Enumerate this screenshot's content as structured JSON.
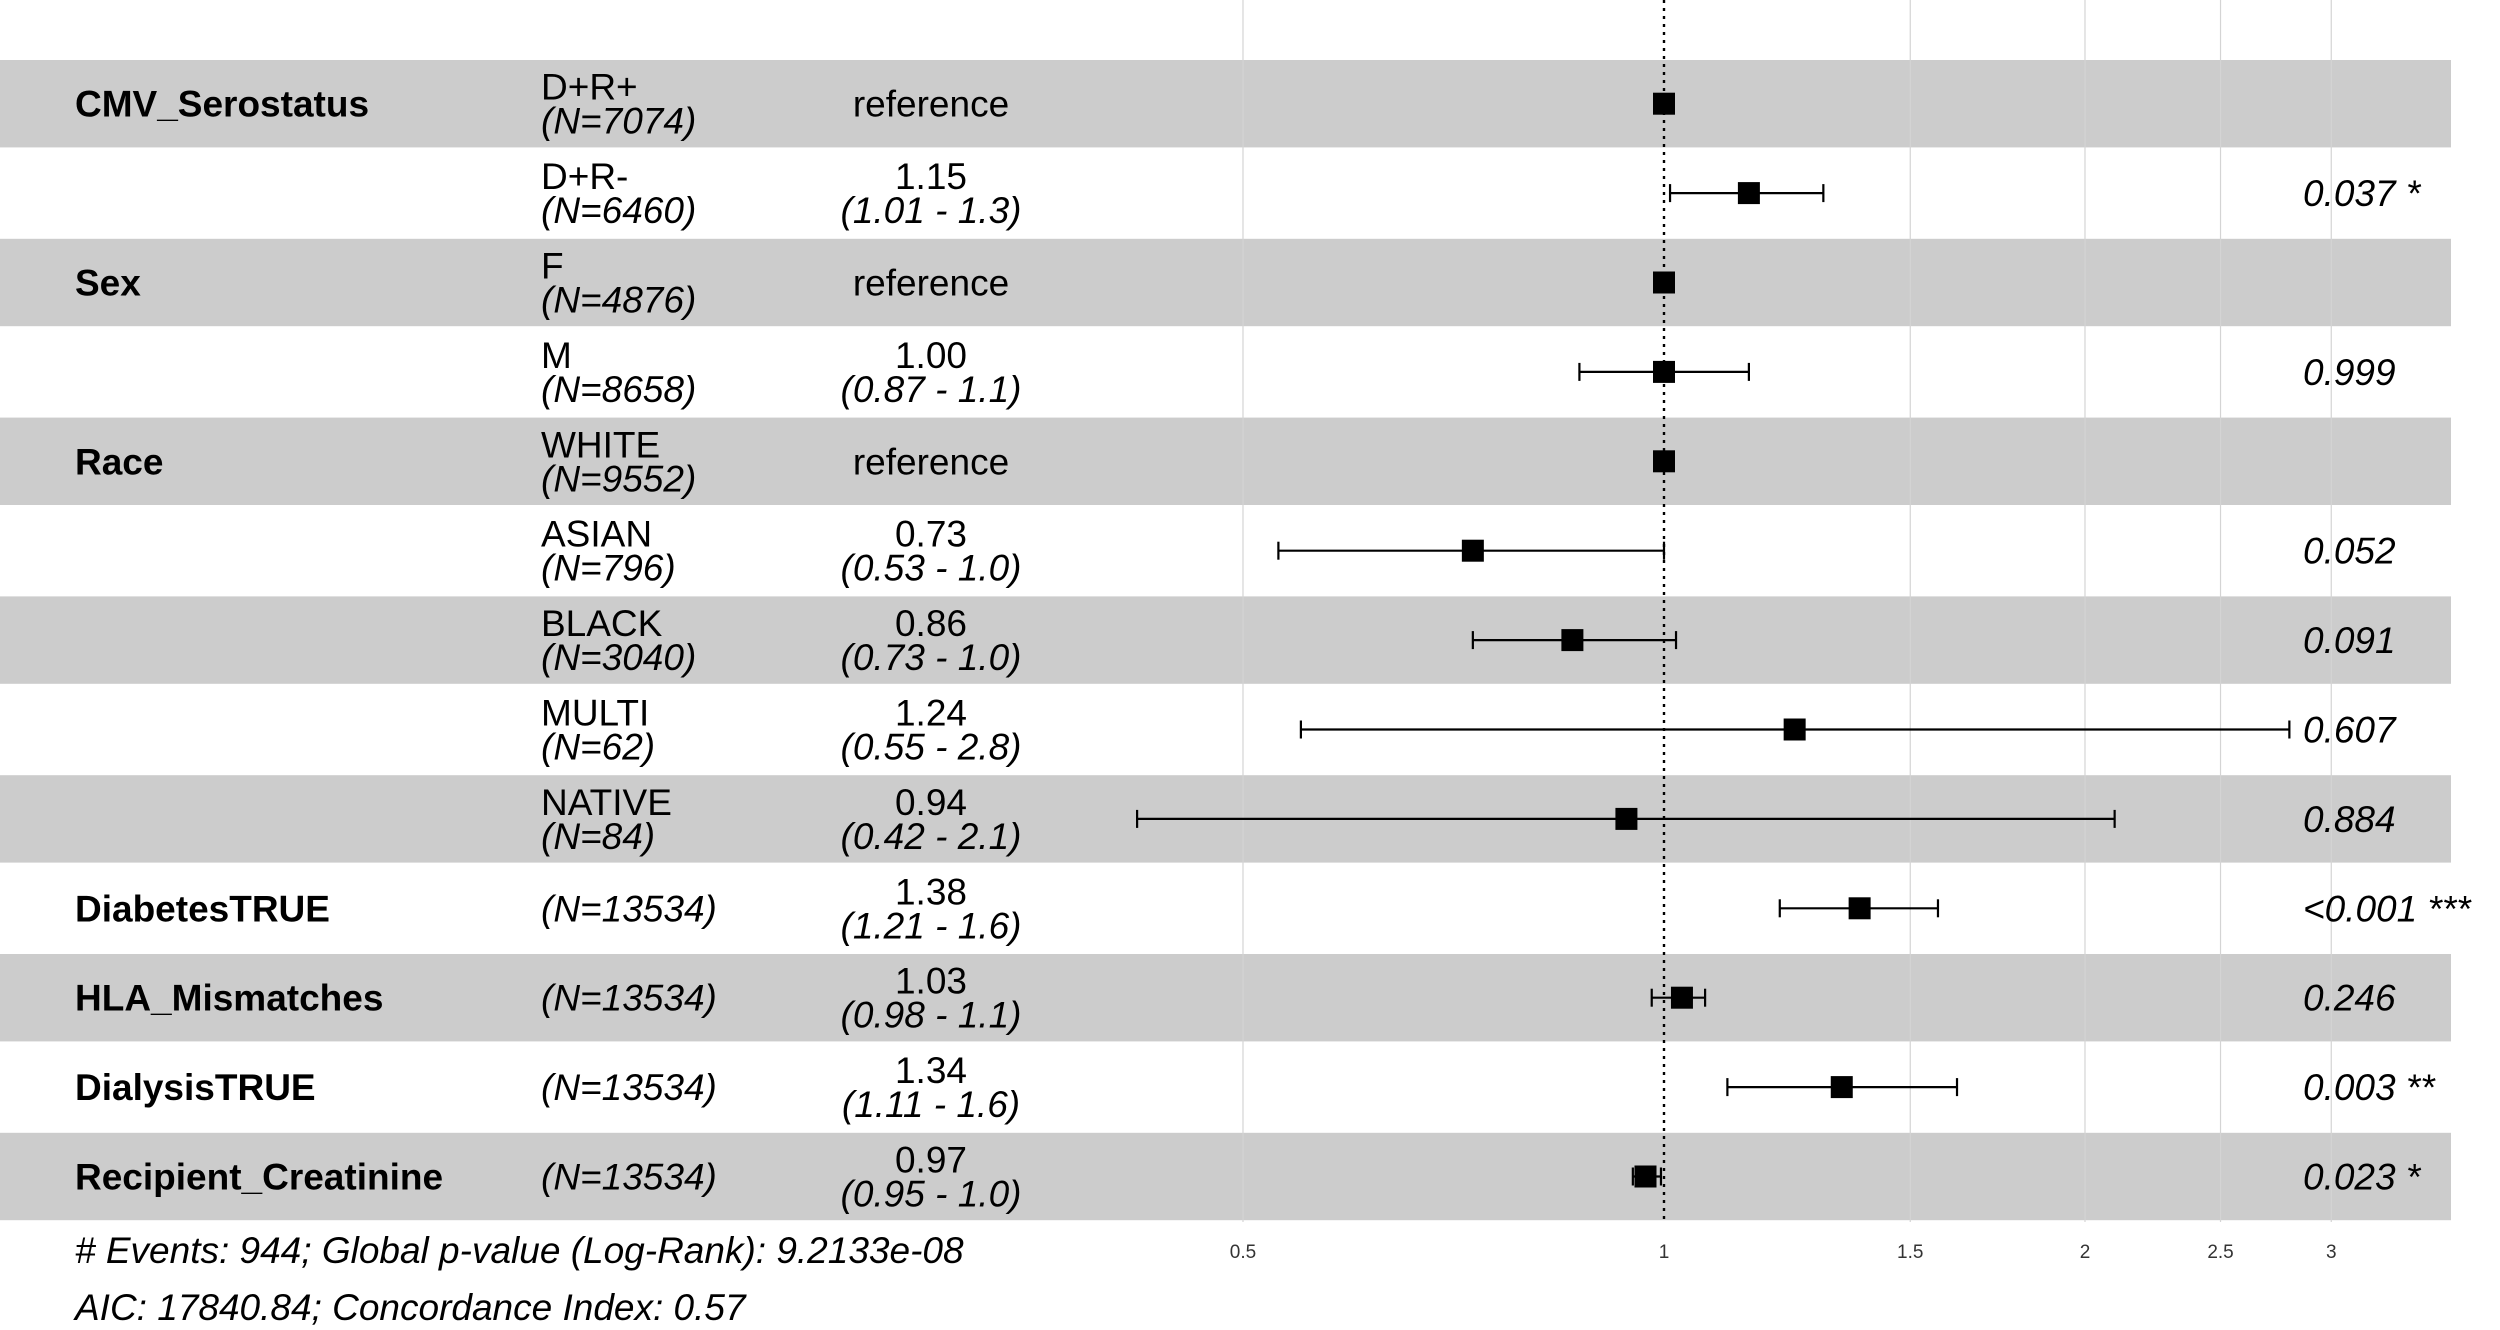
{
  "chart_data": {
    "type": "forest",
    "scale": "log",
    "xlim": [
      0.4,
      3.3
    ],
    "ticks": [
      0.5,
      1,
      1.5,
      2,
      2.5,
      3
    ],
    "tick_labels": [
      "0.5",
      "1",
      "1.5",
      "2",
      "2.5",
      "3"
    ],
    "reference_line": 1,
    "grid": true,
    "colors": {
      "band": "#cccccc",
      "marker": "#000000",
      "reference_line": "#000000",
      "grid": "#d4d4d4"
    },
    "rows": [
      {
        "variable": "CMV_Serostatus",
        "level": "D+R+",
        "n": "(N=7074)",
        "hr_text": "reference",
        "ci_text": "",
        "p_text": "",
        "hr": 1.0,
        "lo": null,
        "hi": null,
        "reference": true
      },
      {
        "variable": "",
        "level": "D+R-",
        "n": "(N=6460)",
        "hr_text": "1.15",
        "ci_text": "(1.01 - 1.3)",
        "p_text": "0.037 *",
        "hr": 1.15,
        "lo": 1.01,
        "hi": 1.3,
        "reference": false
      },
      {
        "variable": "Sex",
        "level": "F",
        "n": "(N=4876)",
        "hr_text": "reference",
        "ci_text": "",
        "p_text": "",
        "hr": 1.0,
        "lo": null,
        "hi": null,
        "reference": true
      },
      {
        "variable": "",
        "level": "M",
        "n": "(N=8658)",
        "hr_text": "1.00",
        "ci_text": "(0.87 - 1.1)",
        "p_text": "0.999",
        "hr": 1.0,
        "lo": 0.87,
        "hi": 1.15,
        "reference": false
      },
      {
        "variable": "Race",
        "level": "WHITE",
        "n": "(N=9552)",
        "hr_text": "reference",
        "ci_text": "",
        "p_text": "",
        "hr": 1.0,
        "lo": null,
        "hi": null,
        "reference": true
      },
      {
        "variable": "",
        "level": "ASIAN",
        "n": "(N=796)",
        "hr_text": "0.73",
        "ci_text": "(0.53 - 1.0)",
        "p_text": "0.052",
        "hr": 0.73,
        "lo": 0.53,
        "hi": 1.0,
        "reference": false
      },
      {
        "variable": "",
        "level": "BLACK",
        "n": "(N=3040)",
        "hr_text": "0.86",
        "ci_text": "(0.73 - 1.0)",
        "p_text": "0.091",
        "hr": 0.86,
        "lo": 0.73,
        "hi": 1.02,
        "reference": false
      },
      {
        "variable": "",
        "level": "MULTI",
        "n": "(N=62)",
        "hr_text": "1.24",
        "ci_text": "(0.55 - 2.8)",
        "p_text": "0.607",
        "hr": 1.24,
        "lo": 0.55,
        "hi": 2.8,
        "reference": false
      },
      {
        "variable": "",
        "level": "NATIVE",
        "n": "(N=84)",
        "hr_text": "0.94",
        "ci_text": "(0.42 - 2.1)",
        "p_text": "0.884",
        "hr": 0.94,
        "lo": 0.42,
        "hi": 2.1,
        "reference": false
      },
      {
        "variable": "DiabetesTRUE",
        "level": "",
        "n": "(N=13534)",
        "hr_text": "1.38",
        "ci_text": "(1.21 - 1.6)",
        "p_text": "<0.001 ***",
        "hr": 1.38,
        "lo": 1.21,
        "hi": 1.57,
        "reference": false
      },
      {
        "variable": "HLA_Mismatches",
        "level": "",
        "n": "(N=13534)",
        "hr_text": "1.03",
        "ci_text": "(0.98 - 1.1)",
        "p_text": "0.246",
        "hr": 1.03,
        "lo": 0.98,
        "hi": 1.07,
        "reference": false
      },
      {
        "variable": "DialysisTRUE",
        "level": "",
        "n": "(N=13534)",
        "hr_text": "1.34",
        "ci_text": "(1.11 - 1.6)",
        "p_text": "0.003 **",
        "hr": 1.34,
        "lo": 1.11,
        "hi": 1.62,
        "reference": false
      },
      {
        "variable": "Recipient_Creatinine",
        "level": "",
        "n": "(N=13534)",
        "hr_text": "0.97",
        "ci_text": "(0.95 - 1.0)",
        "p_text": "0.023 *",
        "hr": 0.97,
        "lo": 0.95,
        "hi": 0.995,
        "reference": false
      }
    ],
    "footer": [
      "# Events: 944; Global p-value (Log-Rank): 9.2133e-08",
      "AIC: 17840.84; Concordance Index: 0.57"
    ]
  }
}
